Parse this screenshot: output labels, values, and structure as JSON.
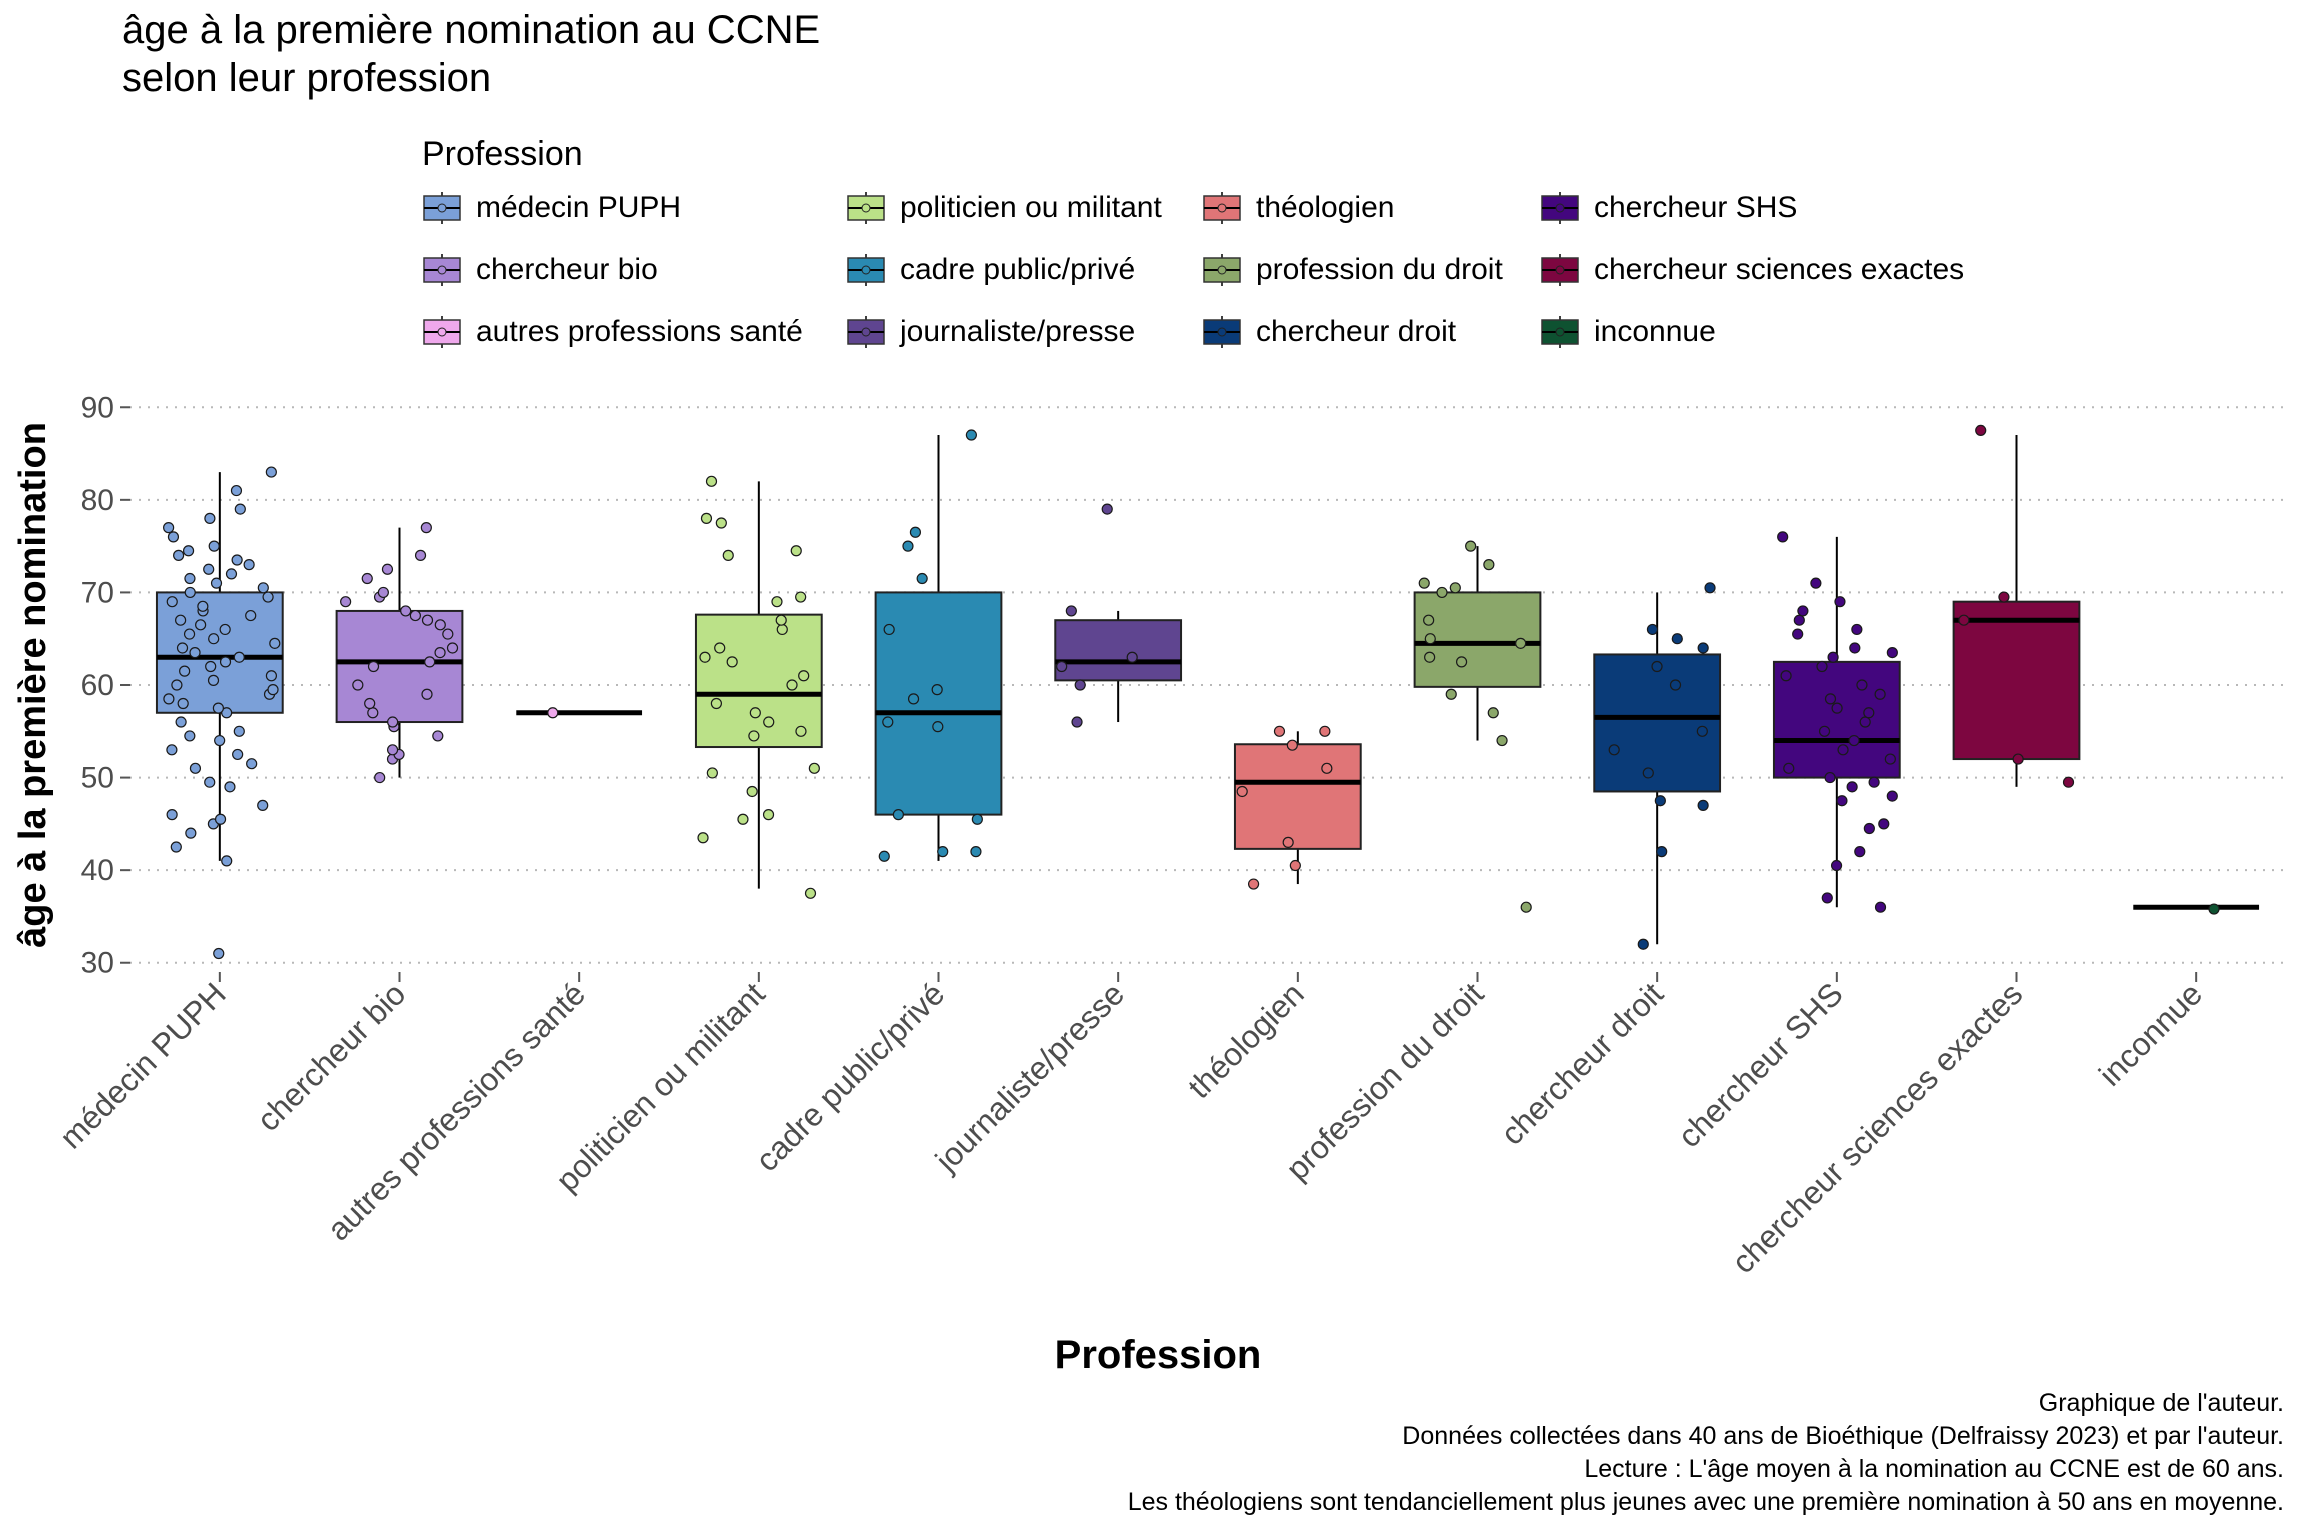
{
  "title_lines": [
    "âge à la première nomination au CCNE",
    "selon leur profession"
  ],
  "legend": {
    "title": "Profession",
    "items": [
      {
        "label": "médecin PUPH",
        "color": "#7BA0D8"
      },
      {
        "label": "chercheur bio",
        "color": "#A787D4"
      },
      {
        "label": "autres professions santé",
        "color": "#EFA8EC"
      },
      {
        "label": "politicien ou militant",
        "color": "#BBE188"
      },
      {
        "label": "cadre public/privé",
        "color": "#2A8AB2"
      },
      {
        "label": "journaliste/presse",
        "color": "#5F4590"
      },
      {
        "label": "théologien",
        "color": "#E07577"
      },
      {
        "label": "profession du droit",
        "color": "#8BA76A"
      },
      {
        "label": "chercheur droit",
        "color": "#0A3B78"
      },
      {
        "label": "chercheur SHS",
        "color": "#43067E"
      },
      {
        "label": "chercheur sciences exactes",
        "color": "#7D0640"
      },
      {
        "label": "inconnue",
        "color": "#0E5231"
      }
    ]
  },
  "caption_lines": [
    "Graphique de l'auteur.",
    "Données collectées dans 40 ans de Bioéthique (Delfraissy 2023) et par l'auteur.",
    "Lecture : L'âge moyen à la nomination au CCNE est de 60 ans.",
    "Les théologiens sont tendanciellement plus jeunes avec une première nomination à 50 ans en moyenne."
  ],
  "chart_data": {
    "type": "boxplot",
    "xlabel": "Profession",
    "ylabel": "âge à la première nomination",
    "ylim": [
      29,
      91
    ],
    "yticks": [
      30,
      40,
      50,
      60,
      70,
      80,
      90
    ],
    "grid": "horizontal-dotted",
    "legend_position": "top",
    "categories": [
      "médecin PUPH",
      "chercheur bio",
      "autres professions santé",
      "politicien ou militant",
      "cadre public/privé",
      "journaliste/presse",
      "théologien",
      "profession du droit",
      "chercheur droit",
      "chercheur SHS",
      "chercheur sciences exactes",
      "inconnue"
    ],
    "boxes": [
      {
        "category": "médecin PUPH",
        "min": 41,
        "q1": 57,
        "median": 63,
        "q3": 70,
        "max": 83,
        "outliers": [
          31
        ]
      },
      {
        "category": "chercheur bio",
        "min": 50,
        "q1": 56,
        "median": 62.5,
        "q3": 68,
        "max": 77,
        "outliers": []
      },
      {
        "category": "autres professions santé",
        "min": 57,
        "q1": 57,
        "median": 57,
        "q3": 57,
        "max": 57,
        "outliers": []
      },
      {
        "category": "politicien ou militant",
        "min": 38,
        "q1": 53.3,
        "median": 59,
        "q3": 67.6,
        "max": 82,
        "outliers": []
      },
      {
        "category": "cadre public/privé",
        "min": 41,
        "q1": 46,
        "median": 57,
        "q3": 70,
        "max": 87,
        "outliers": []
      },
      {
        "category": "journaliste/presse",
        "min": 56,
        "q1": 60.5,
        "median": 62.5,
        "q3": 67,
        "max": 68,
        "outliers": [
          79
        ]
      },
      {
        "category": "théologien",
        "min": 38.5,
        "q1": 42.3,
        "median": 49.5,
        "q3": 53.6,
        "max": 55,
        "outliers": []
      },
      {
        "category": "profession du droit",
        "min": 54,
        "q1": 59.8,
        "median": 64.5,
        "q3": 70,
        "max": 75,
        "outliers": [
          36
        ]
      },
      {
        "category": "chercheur droit",
        "min": 32,
        "q1": 48.5,
        "median": 56.5,
        "q3": 63.3,
        "max": 70,
        "outliers": []
      },
      {
        "category": "chercheur SHS",
        "min": 36,
        "q1": 50,
        "median": 54,
        "q3": 62.5,
        "max": 76,
        "outliers": []
      },
      {
        "category": "chercheur sciences exactes",
        "min": 49,
        "q1": 52,
        "median": 67,
        "q3": 69,
        "max": 87,
        "outliers": []
      },
      {
        "category": "inconnue",
        "min": 36,
        "q1": 36,
        "median": 36,
        "q3": 36,
        "max": 36,
        "outliers": []
      }
    ],
    "points": [
      {
        "category": "médecin PUPH",
        "values": [
          31,
          41,
          42.5,
          44,
          45,
          45.5,
          46,
          47,
          49,
          49.5,
          51,
          51.5,
          52.5,
          53,
          54,
          54.5,
          55,
          56,
          57,
          57.5,
          58,
          58.5,
          59,
          59.5,
          60,
          60.5,
          61,
          61.5,
          62,
          62.5,
          63,
          63.5,
          64,
          64.5,
          65,
          65.5,
          66,
          66.5,
          67,
          67.5,
          68,
          68.5,
          69,
          69.5,
          70,
          70.5,
          71,
          71.5,
          72,
          72.5,
          73,
          73.5,
          74,
          74.5,
          75,
          76,
          77,
          78,
          79,
          81,
          83
        ]
      },
      {
        "category": "chercheur bio",
        "values": [
          50,
          52,
          52.5,
          53,
          54.5,
          55.5,
          56,
          57,
          58,
          59,
          60,
          62,
          62.5,
          63.5,
          64,
          65.5,
          66.5,
          67,
          67.5,
          68,
          69,
          69.5,
          70,
          71.5,
          72.5,
          74,
          77
        ]
      },
      {
        "category": "autres professions santé",
        "values": [
          57
        ]
      },
      {
        "category": "politicien ou militant",
        "values": [
          37.5,
          43.5,
          45.5,
          46,
          48.5,
          50.5,
          51,
          54.5,
          55,
          56,
          57,
          58,
          60,
          61,
          62.5,
          63,
          64,
          66,
          67,
          69,
          69.5,
          74,
          74.5,
          77.5,
          78,
          82
        ]
      },
      {
        "category": "cadre public/privé",
        "values": [
          41.5,
          42,
          42,
          45.5,
          46,
          55.5,
          56,
          58.5,
          59.5,
          66,
          71.5,
          75,
          76.5,
          87
        ]
      },
      {
        "category": "journaliste/presse",
        "values": [
          56,
          60,
          62,
          63,
          68,
          79
        ]
      },
      {
        "category": "théologien",
        "values": [
          38.5,
          40.5,
          43,
          48.5,
          51,
          53.5,
          55,
          55
        ]
      },
      {
        "category": "profession du droit",
        "values": [
          36,
          54,
          57,
          59,
          62.5,
          63,
          64.5,
          65,
          67,
          70,
          70.5,
          71,
          73,
          75
        ]
      },
      {
        "category": "chercheur droit",
        "values": [
          32,
          42,
          47,
          47.5,
          50.5,
          53,
          55,
          60,
          62,
          64,
          65,
          66,
          70.5
        ]
      },
      {
        "category": "chercheur SHS",
        "values": [
          36,
          37,
          40.5,
          42,
          44.5,
          45,
          47.5,
          48,
          49,
          49.5,
          50,
          51,
          52,
          53,
          54,
          55,
          56,
          57,
          57.5,
          58.5,
          59,
          60,
          61,
          62,
          63,
          63.5,
          64,
          65.5,
          66,
          67,
          68,
          69,
          71,
          76
        ]
      },
      {
        "category": "chercheur sciences exactes",
        "values": [
          49.5,
          52,
          67,
          69.5,
          87.5
        ]
      },
      {
        "category": "inconnue",
        "values": [
          35.8
        ]
      }
    ]
  }
}
